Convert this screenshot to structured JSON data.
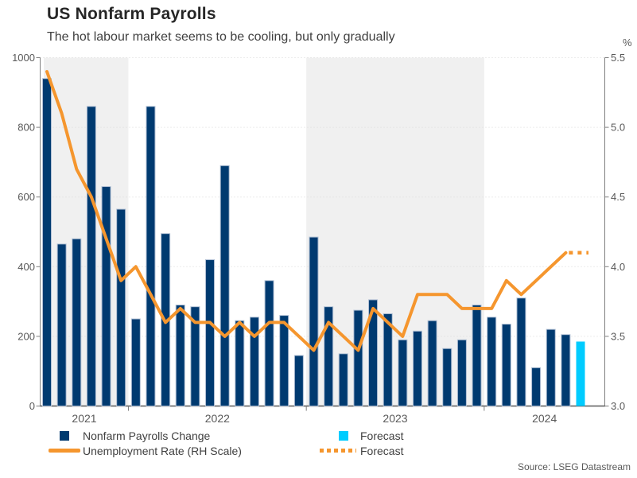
{
  "header": {
    "title": "US Nonfarm Payrolls",
    "subtitle": "The hot labour market seems to be cooling, but only gradually"
  },
  "source": "Source: LSEG Datastream",
  "colors": {
    "bar_navy": "#003a70",
    "bar_stroke": "#b0bfd4",
    "bar_forecast_cyan": "#00ccff",
    "line_orange": "#f5962e",
    "year_band_gray": "#f0f0f0",
    "gridline": "#d9d9d9",
    "axis": "#808080",
    "tick_text": "#595959",
    "title_text": "#262626"
  },
  "legend": {
    "row1": [
      {
        "label": "Nonfarm Payrolls Change"
      },
      {
        "label": "Forecast"
      }
    ],
    "row2": [
      {
        "label": "Unemployment Rate (RH Scale)"
      },
      {
        "label": "Forecast"
      }
    ]
  },
  "chart_data": {
    "type": "bar",
    "frequency": "monthly",
    "title": "US Nonfarm Payrolls",
    "subtitle": "The hot labour market seems to be cooling, but only gradually",
    "months": [
      "2021-07",
      "2021-08",
      "2021-09",
      "2021-10",
      "2021-11",
      "2021-12",
      "2022-01",
      "2022-02",
      "2022-03",
      "2022-04",
      "2022-05",
      "2022-06",
      "2022-07",
      "2022-08",
      "2022-09",
      "2022-10",
      "2022-11",
      "2022-12",
      "2023-01",
      "2023-02",
      "2023-03",
      "2023-04",
      "2023-05",
      "2023-06",
      "2023-07",
      "2023-08",
      "2023-09",
      "2023-10",
      "2023-11",
      "2023-12",
      "2024-01",
      "2024-02",
      "2024-03",
      "2024-04",
      "2024-05",
      "2024-06",
      "2024-07"
    ],
    "series": [
      {
        "name": "Nonfarm Payrolls Change",
        "type": "bar",
        "axis": "left",
        "values": [
          940,
          465,
          480,
          860,
          630,
          565,
          250,
          860,
          495,
          290,
          285,
          420,
          690,
          245,
          255,
          360,
          260,
          145,
          485,
          285,
          150,
          275,
          305,
          265,
          190,
          215,
          245,
          165,
          190,
          290,
          255,
          235,
          310,
          110,
          220,
          205,
          null
        ]
      },
      {
        "name": "Forecast",
        "type": "bar",
        "axis": "left",
        "values": [
          null,
          null,
          null,
          null,
          null,
          null,
          null,
          null,
          null,
          null,
          null,
          null,
          null,
          null,
          null,
          null,
          null,
          null,
          null,
          null,
          null,
          null,
          null,
          null,
          null,
          null,
          null,
          null,
          null,
          null,
          null,
          null,
          null,
          null,
          null,
          null,
          185
        ]
      },
      {
        "name": "Unemployment Rate (RH Scale)",
        "type": "line",
        "axis": "right",
        "values": [
          5.4,
          5.1,
          4.7,
          4.5,
          4.2,
          3.9,
          4.0,
          3.8,
          3.6,
          3.7,
          3.6,
          3.6,
          3.5,
          3.6,
          3.5,
          3.6,
          3.6,
          3.5,
          3.4,
          3.6,
          3.5,
          3.4,
          3.7,
          3.6,
          3.5,
          3.8,
          3.8,
          3.8,
          3.7,
          3.7,
          3.7,
          3.9,
          3.8,
          3.9,
          4.0,
          4.1,
          null
        ]
      },
      {
        "name": "Forecast",
        "type": "line-dotted",
        "axis": "right",
        "values": [
          null,
          null,
          null,
          null,
          null,
          null,
          null,
          null,
          null,
          null,
          null,
          null,
          null,
          null,
          null,
          null,
          null,
          null,
          null,
          null,
          null,
          null,
          null,
          null,
          null,
          null,
          null,
          null,
          null,
          null,
          null,
          null,
          null,
          null,
          null,
          4.1,
          4.1
        ]
      }
    ],
    "left_axis": {
      "ticks": [
        0,
        200,
        400,
        600,
        800,
        1000
      ],
      "range": [
        0,
        1000
      ]
    },
    "right_axis": {
      "unit": "%",
      "ticks": [
        3.0,
        3.5,
        4.0,
        4.5,
        5.0,
        5.5
      ],
      "range": [
        3.0,
        5.5
      ]
    },
    "x_axis": {
      "year_labels": [
        "2021",
        "2022",
        "2023",
        "2024"
      ]
    },
    "shaded_years": [
      "2021",
      "2023"
    ],
    "legend_position": "bottom",
    "grid": "dotted-horizontal"
  }
}
